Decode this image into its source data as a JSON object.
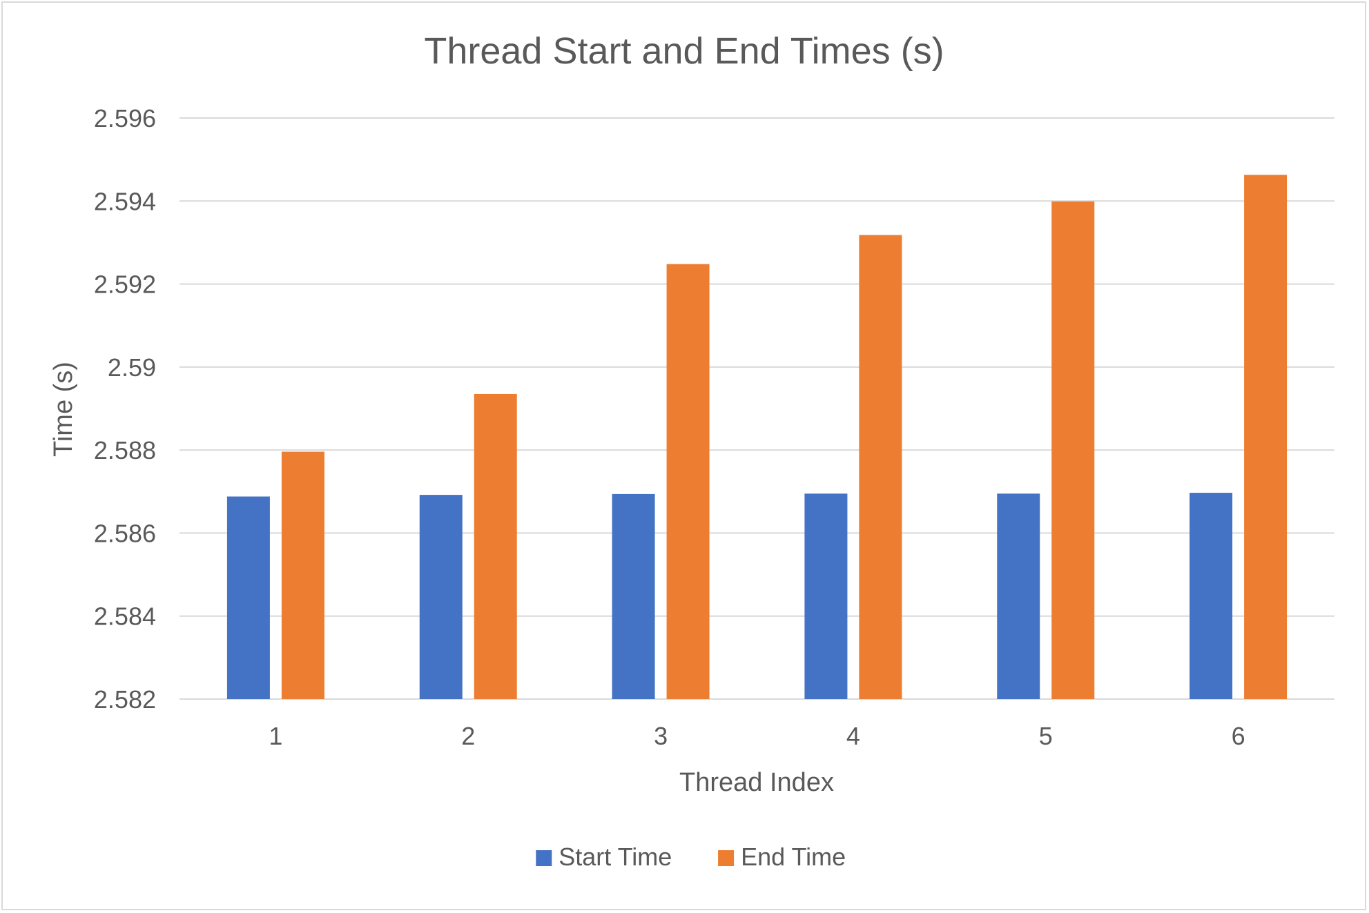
{
  "chart_data": {
    "type": "bar",
    "title": "Thread Start and End Times (s)",
    "xlabel": "Thread Index",
    "ylabel": "Time (s)",
    "categories": [
      "1",
      "2",
      "3",
      "4",
      "5",
      "6"
    ],
    "series": [
      {
        "name": "Start Time",
        "color": "#4472C4",
        "values": [
          2.58688,
          2.58692,
          2.58694,
          2.58695,
          2.58695,
          2.58697
        ]
      },
      {
        "name": "End Time",
        "color": "#ED7D31",
        "values": [
          2.58796,
          2.58935,
          2.59248,
          2.59318,
          2.59399,
          2.59463
        ]
      }
    ],
    "ylim": [
      2.582,
      2.596
    ],
    "yticks": [
      "2.582",
      "2.584",
      "2.586",
      "2.588",
      "2.59",
      "2.592",
      "2.594",
      "2.596"
    ],
    "grid": true,
    "legend_position": "bottom",
    "colors": {
      "gridline": "#d9d9d9",
      "text": "#595959",
      "border": "#d9d9d9"
    }
  }
}
